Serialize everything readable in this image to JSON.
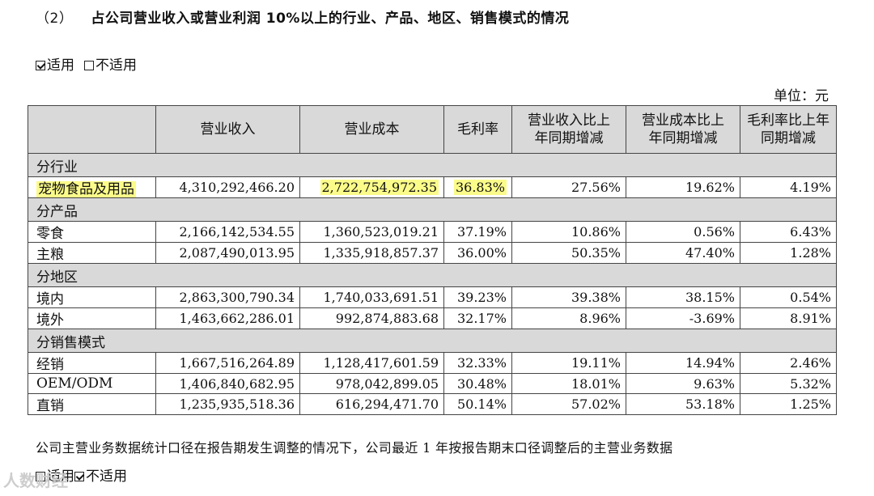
{
  "heading": {
    "num": "（2）",
    "title": "占公司营业收入或营业利润 10%以上的行业、产品、地区、销售模式的情况"
  },
  "applicability_top": {
    "applicable": "适用",
    "not_applicable": "不适用"
  },
  "unit": "单位：元",
  "table": {
    "headers": [
      "",
      "营业收入",
      "营业成本",
      "毛利率",
      "营业收入比上年同期增减",
      "营业成本比上年同期增减",
      "毛利率比上年同期增减"
    ],
    "sections": [
      {
        "title": "分行业",
        "rows": [
          {
            "label": "宠物食品及用品",
            "revenue": "4,310,292,466.20",
            "cost": "2,722,754,972.35",
            "margin": "36.83%",
            "rev_chg": "27.56%",
            "cost_chg": "19.62%",
            "margin_chg": "4.19%"
          }
        ]
      },
      {
        "title": "分产品",
        "rows": [
          {
            "label": "零食",
            "revenue": "2,166,142,534.55",
            "cost": "1,360,523,019.21",
            "margin": "37.19%",
            "rev_chg": "10.86%",
            "cost_chg": "0.56%",
            "margin_chg": "6.43%"
          },
          {
            "label": "主粮",
            "revenue": "2,087,490,013.95",
            "cost": "1,335,918,857.37",
            "margin": "36.00%",
            "rev_chg": "50.35%",
            "cost_chg": "47.40%",
            "margin_chg": "1.28%"
          }
        ]
      },
      {
        "title": "分地区",
        "rows": [
          {
            "label": "境内",
            "revenue": "2,863,300,790.34",
            "cost": "1,740,033,691.51",
            "margin": "39.23%",
            "rev_chg": "39.38%",
            "cost_chg": "38.15%",
            "margin_chg": "0.54%"
          },
          {
            "label": "境外",
            "revenue": "1,463,662,286.01",
            "cost": "992,874,883.68",
            "margin": "32.17%",
            "rev_chg": "8.96%",
            "cost_chg": "-3.69%",
            "margin_chg": "8.91%"
          }
        ]
      },
      {
        "title": "分销售模式",
        "rows": [
          {
            "label": "经销",
            "revenue": "1,667,516,264.89",
            "cost": "1,128,417,601.59",
            "margin": "32.33%",
            "rev_chg": "19.11%",
            "cost_chg": "14.94%",
            "margin_chg": "2.46%"
          },
          {
            "label": "OEM/ODM",
            "revenue": "1,406,840,682.95",
            "cost": "978,042,899.05",
            "margin": "30.48%",
            "rev_chg": "18.01%",
            "cost_chg": "9.63%",
            "margin_chg": "5.32%"
          },
          {
            "label": "直销",
            "revenue": "1,235,935,518.36",
            "cost": "616,294,471.70",
            "margin": "50.14%",
            "rev_chg": "57.02%",
            "cost_chg": "53.18%",
            "margin_chg": "1.25%"
          }
        ]
      }
    ]
  },
  "note": "公司主营业务数据统计口径在报告期发生调整的情况下，公司最近 1 年按报告期末口径调整后的主营业务数据",
  "applicability_bottom": {
    "applicable": "适用",
    "not_applicable": "不适用"
  },
  "watermark": "人数财经",
  "colors": {
    "header_bg": "#d9d9d9",
    "highlight": "#fbfb8a"
  }
}
